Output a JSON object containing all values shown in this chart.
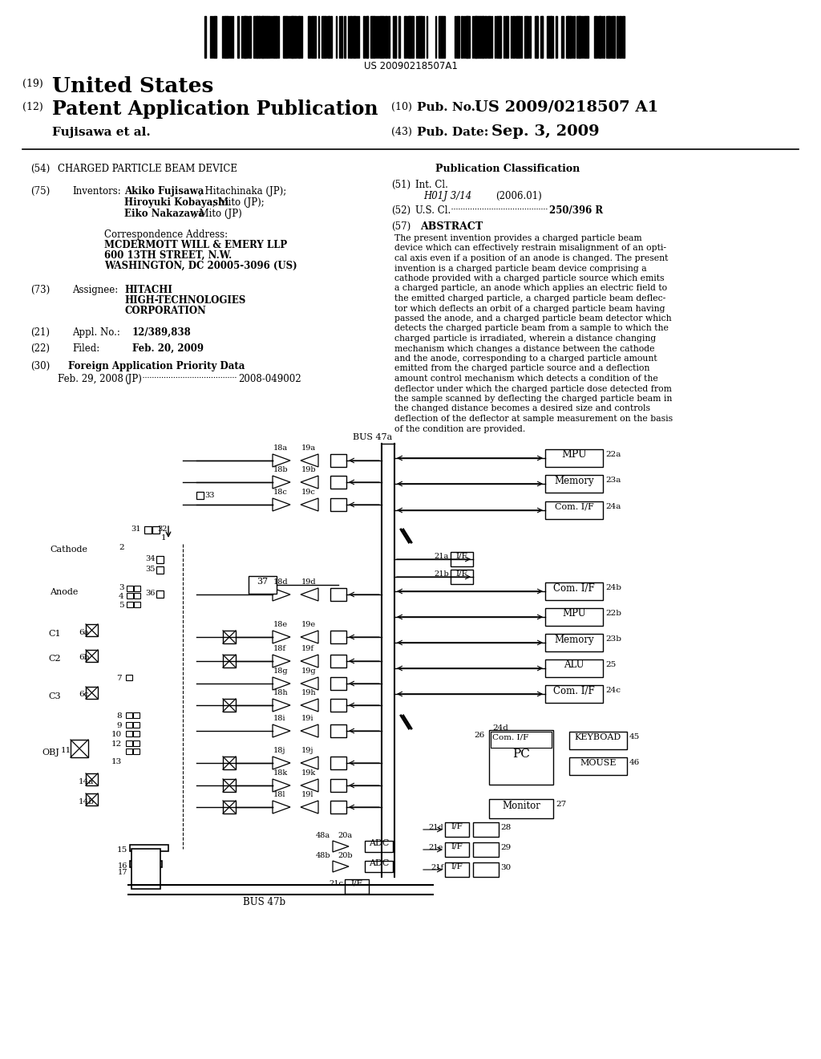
{
  "background_color": "#ffffff",
  "barcode_text": "US 20090218507A1",
  "abstract_lines": [
    "The present invention provides a charged particle beam",
    "device which can effectively restrain misalignment of an opti-",
    "cal axis even if a position of an anode is changed. The present",
    "invention is a charged particle beam device comprising a",
    "cathode provided with a charged particle source which emits",
    "a charged particle, an anode which applies an electric field to",
    "the emitted charged particle, a charged particle beam deflec-",
    "tor which deflects an orbit of a charged particle beam having",
    "passed the anode, and a charged particle beam detector which",
    "detects the charged particle beam from a sample to which the",
    "charged particle is irradiated, wherein a distance changing",
    "mechanism which changes a distance between the cathode",
    "and the anode, corresponding to a charged particle amount",
    "emitted from the charged particle source and a deflection",
    "amount control mechanism which detects a condition of the",
    "deflector under which the charged particle dose detected from",
    "the sample scanned by deflecting the charged particle beam in",
    "the changed distance becomes a desired size and controls",
    "deflection of the deflector at sample measurement on the basis",
    "of the condition are provided."
  ]
}
